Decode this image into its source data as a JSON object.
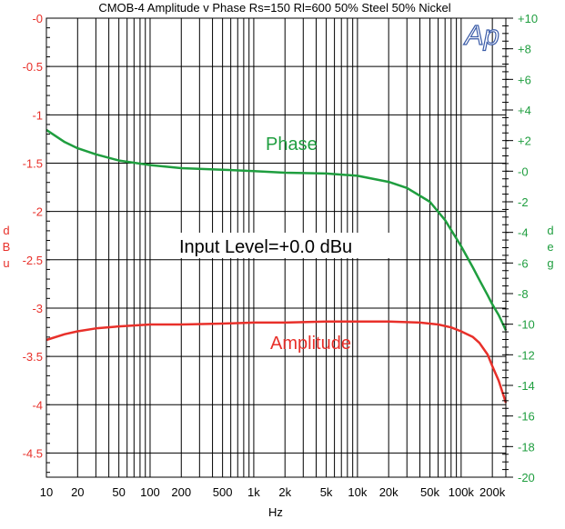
{
  "chart_data": {
    "type": "line",
    "title": "CMOB-4   Amplitude v Phase Rs=150 Rl=600 50% Steel 50% Nickel",
    "logo_text": "Ap",
    "xlabel": "Hz",
    "xscale": "log",
    "xlim": [
      10,
      270000
    ],
    "x_tick_labels": [
      "10",
      "20",
      "50",
      "100",
      "200",
      "500",
      "1k",
      "2k",
      "5k",
      "10k",
      "20k",
      "50k",
      "100k",
      "200k"
    ],
    "x_tick_values": [
      10,
      20,
      50,
      100,
      200,
      500,
      1000,
      2000,
      5000,
      10000,
      20000,
      50000,
      100000,
      200000
    ],
    "y_left": {
      "label": [
        "d",
        "B",
        "u"
      ],
      "lim": [
        -4.75,
        0
      ],
      "ticks": [
        "-0",
        "-0.5",
        "-1",
        "-1.5",
        "-2",
        "-2.5",
        "-3",
        "-3.5",
        "-4",
        "-4.5"
      ],
      "tick_values": [
        0,
        -0.5,
        -1,
        -1.5,
        -2,
        -2.5,
        -3,
        -3.5,
        -4,
        -4.5
      ],
      "color": "#e8302a"
    },
    "y_right": {
      "label": [
        "d",
        "e",
        "g"
      ],
      "lim": [
        -20,
        10
      ],
      "ticks": [
        "+10",
        "+8",
        "+6",
        "+4",
        "+2",
        "-0",
        "-2",
        "-4",
        "-6",
        "-8",
        "-10",
        "-12",
        "-14",
        "-16",
        "-18",
        "-20"
      ],
      "tick_values": [
        10,
        8,
        6,
        4,
        2,
        0,
        -2,
        -4,
        -6,
        -8,
        -10,
        -12,
        -14,
        -16,
        -18,
        -20
      ],
      "color": "#1f9e3f"
    },
    "grid": true,
    "annotations": {
      "phase_label": "Phase",
      "amplitude_label": "Amplitude",
      "input_level": "Input Level=+0.0 dBu"
    },
    "series": [
      {
        "name": "Amplitude",
        "axis": "left",
        "color": "#e8302a",
        "x": [
          10,
          15,
          20,
          30,
          50,
          100,
          200,
          500,
          1000,
          2000,
          5000,
          10000,
          20000,
          40000,
          60000,
          80000,
          100000,
          130000,
          150000,
          180000,
          200000,
          230000,
          270000
        ],
        "y": [
          -3.33,
          -3.27,
          -3.24,
          -3.21,
          -3.19,
          -3.17,
          -3.17,
          -3.16,
          -3.15,
          -3.15,
          -3.14,
          -3.14,
          -3.14,
          -3.15,
          -3.17,
          -3.2,
          -3.24,
          -3.3,
          -3.36,
          -3.48,
          -3.6,
          -3.75,
          -3.98
        ]
      },
      {
        "name": "Phase",
        "axis": "right",
        "color": "#1f9e3f",
        "x": [
          10,
          15,
          20,
          30,
          50,
          100,
          200,
          500,
          1000,
          2000,
          5000,
          10000,
          20000,
          30000,
          50000,
          70000,
          100000,
          130000,
          150000,
          180000,
          200000,
          230000,
          270000
        ],
        "y": [
          2.7,
          1.9,
          1.5,
          1.1,
          0.7,
          0.4,
          0.2,
          0.1,
          0.0,
          -0.1,
          -0.15,
          -0.3,
          -0.7,
          -1.1,
          -2.0,
          -3.2,
          -4.9,
          -6.3,
          -7.1,
          -8.1,
          -8.7,
          -9.4,
          -10.4
        ]
      }
    ]
  }
}
